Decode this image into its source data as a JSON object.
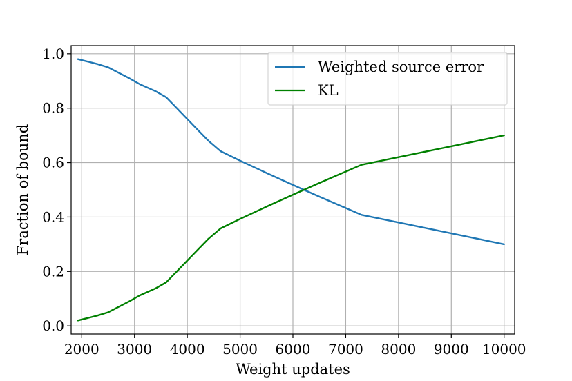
{
  "chart_data": {
    "type": "line",
    "title": "",
    "xlabel": "Weight updates",
    "ylabel": "Fraction of bound",
    "xlim": [
      1800,
      10200
    ],
    "ylim": [
      -0.03,
      1.03
    ],
    "xticks": [
      2000,
      3000,
      4000,
      5000,
      6000,
      7000,
      8000,
      9000,
      10000
    ],
    "xtick_labels": [
      "2000",
      "3000",
      "4000",
      "5000",
      "6000",
      "7000",
      "8000",
      "9000",
      "10000"
    ],
    "yticks": [
      0.0,
      0.2,
      0.4,
      0.6,
      0.8,
      1.0
    ],
    "ytick_labels": [
      "0.0",
      "0.2",
      "0.4",
      "0.6",
      "0.8",
      "1.0"
    ],
    "grid": true,
    "legend_position": "top-right",
    "series": [
      {
        "name": "Weighted source error",
        "color": "#1f77b4",
        "x": [
          1930,
          2100,
          2300,
          2500,
          2700,
          2900,
          3100,
          3400,
          3600,
          3800,
          4100,
          4400,
          4630,
          5000,
          5500,
          6000,
          6500,
          7000,
          7300,
          8000,
          9000,
          10000
        ],
        "y": [
          0.98,
          0.972,
          0.962,
          0.95,
          0.93,
          0.91,
          0.888,
          0.862,
          0.84,
          0.8,
          0.74,
          0.68,
          0.642,
          0.607,
          0.562,
          0.518,
          0.475,
          0.433,
          0.408,
          0.38,
          0.34,
          0.3
        ]
      },
      {
        "name": "KL",
        "color": "#008000",
        "x": [
          1930,
          2100,
          2300,
          2500,
          2700,
          2900,
          3100,
          3400,
          3600,
          3800,
          4100,
          4400,
          4630,
          5000,
          5500,
          6000,
          6500,
          7000,
          7300,
          8000,
          9000,
          10000
        ],
        "y": [
          0.02,
          0.028,
          0.038,
          0.05,
          0.07,
          0.09,
          0.112,
          0.138,
          0.16,
          0.2,
          0.26,
          0.32,
          0.358,
          0.393,
          0.438,
          0.482,
          0.525,
          0.567,
          0.592,
          0.62,
          0.66,
          0.7
        ]
      }
    ]
  }
}
